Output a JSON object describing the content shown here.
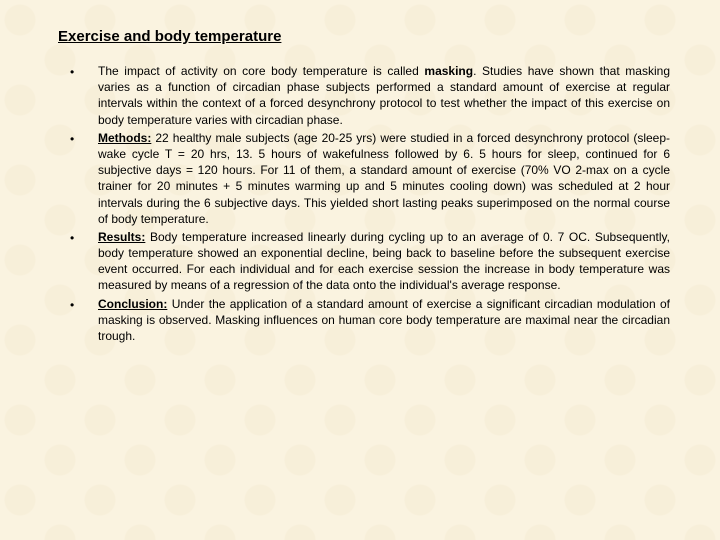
{
  "background_color": "#faf3e0",
  "text_color": "#000000",
  "title": "Exercise and body temperature",
  "title_fontsize": 15,
  "body_fontsize": 12,
  "bullets": [
    {
      "label": "",
      "pre": "The impact of activity on core body temperature is called ",
      "bold_inline": "masking",
      "post": ". Studies have shown that masking varies as a function of circadian phase subjects performed a standard amount of exercise at regular intervals within the context of a forced desynchrony protocol to test whether the impact of this exercise on body temperature varies with circadian phase."
    },
    {
      "label": "Methods:",
      "pre": "",
      "bold_inline": "",
      "post": " 22 healthy male subjects (age 20-25 yrs) were studied in a forced desynchrony protocol (sleep-wake cycle T = 20 hrs, 13. 5 hours of wakefulness followed by 6. 5 hours for sleep, continued for 6 subjective days = 120 hours. For 11 of them, a standard amount of exercise (70% VO 2-max on a cycle trainer for 20 minutes + 5 minutes warming up and 5 minutes cooling down) was scheduled at 2 hour intervals during the 6 subjective days. This yielded short lasting peaks superimposed on the normal course of body temperature."
    },
    {
      "label": "Results:",
      "pre": "",
      "bold_inline": "",
      "post": " Body temperature increased linearly during cycling up to an average of 0. 7 OC. Subsequently, body temperature showed an exponential decline, being back to baseline before the subsequent exercise event occurred. For each individual and for each exercise session the increase in body temperature was measured by means of a regression of the data onto the individual's average response."
    },
    {
      "label": "Conclusion:",
      "pre": "",
      "bold_inline": "",
      "post": " Under the application of a standard amount of exercise a significant circadian modulation of masking is observed. Masking influences on human core body temperature are maximal near the circadian trough."
    }
  ]
}
